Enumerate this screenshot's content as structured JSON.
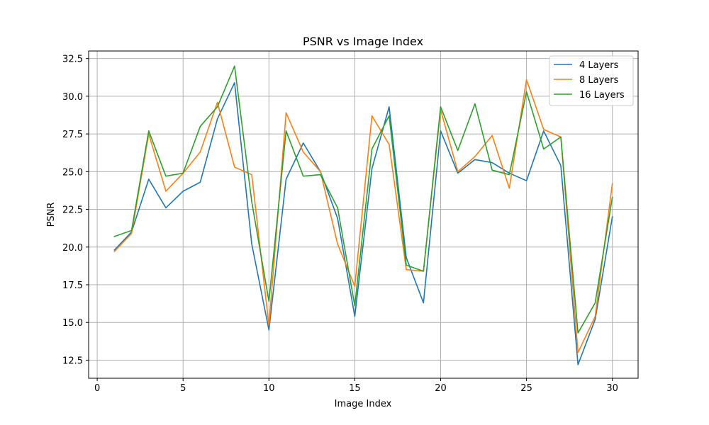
{
  "chart_data": {
    "type": "line",
    "title": "PSNR vs Image Index",
    "xlabel": "Image Index",
    "ylabel": "PSNR",
    "xlim": [
      -0.5,
      31.5
    ],
    "ylim": [
      11.3,
      33.0
    ],
    "xticks": [
      0,
      5,
      10,
      15,
      20,
      25,
      30
    ],
    "yticks": [
      12.5,
      15.0,
      17.5,
      20.0,
      22.5,
      25.0,
      27.5,
      30.0,
      32.5
    ],
    "ytick_labels": [
      "12.5",
      "15.0",
      "17.5",
      "20.0",
      "22.5",
      "25.0",
      "27.5",
      "30.0",
      "32.5"
    ],
    "grid": true,
    "legend_position": "top-right",
    "x": [
      1,
      2,
      3,
      4,
      5,
      6,
      7,
      8,
      9,
      10,
      11,
      12,
      13,
      14,
      15,
      16,
      17,
      18,
      19,
      20,
      21,
      22,
      23,
      24,
      25,
      26,
      27,
      28,
      29,
      30
    ],
    "series": [
      {
        "name": "4 Layers",
        "color": "#1f77b4",
        "values": [
          19.8,
          21.0,
          24.5,
          22.6,
          23.7,
          24.3,
          28.5,
          30.9,
          20.2,
          14.5,
          24.5,
          26.9,
          25.0,
          21.9,
          15.4,
          25.2,
          29.3,
          19.3,
          16.3,
          27.7,
          24.9,
          25.8,
          25.6,
          24.9,
          24.4,
          27.7,
          25.4,
          12.2,
          15.2,
          22.0
        ]
      },
      {
        "name": "8 Layers",
        "color": "#ff7f0e",
        "values": [
          19.7,
          20.9,
          27.5,
          23.7,
          24.9,
          26.3,
          29.6,
          25.3,
          24.8,
          14.8,
          28.9,
          26.3,
          25.0,
          20.2,
          17.4,
          28.7,
          26.8,
          18.5,
          18.4,
          29.1,
          25.0,
          26.0,
          27.4,
          23.9,
          31.1,
          27.8,
          27.3,
          13.0,
          15.4,
          24.2
        ]
      },
      {
        "name": "16 Layers",
        "color": "#2ca02c",
        "values": [
          20.7,
          21.1,
          27.7,
          24.7,
          24.9,
          28.0,
          29.3,
          32.0,
          23.0,
          16.4,
          27.7,
          24.7,
          24.8,
          22.6,
          16.1,
          26.5,
          28.7,
          18.8,
          18.4,
          29.3,
          26.4,
          29.5,
          25.1,
          24.8,
          30.3,
          26.5,
          27.3,
          14.3,
          16.3,
          23.3
        ]
      }
    ]
  }
}
